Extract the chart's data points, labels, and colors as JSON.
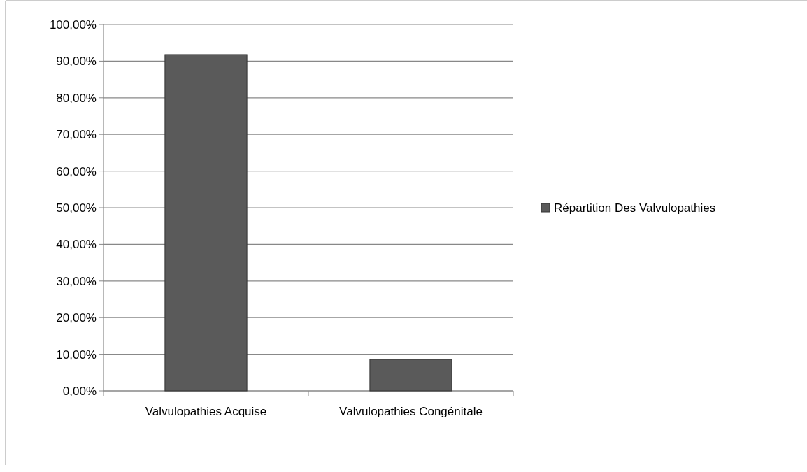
{
  "chart_data": {
    "type": "bar",
    "categories": [
      "Valvulopathies Acquise",
      "Valvulopathies Congénitale"
    ],
    "series": [
      {
        "name": "Répartition Des Valvulopathies",
        "color": "#5a5a5a",
        "values": [
          91.8,
          8.6
        ]
      }
    ],
    "ylim": [
      0,
      100
    ],
    "yticks": [
      {
        "value": 0,
        "label": "0,00%"
      },
      {
        "value": 10,
        "label": "10,00%"
      },
      {
        "value": 20,
        "label": "20,00%"
      },
      {
        "value": 30,
        "label": "30,00%"
      },
      {
        "value": 40,
        "label": "40,00%"
      },
      {
        "value": 50,
        "label": "50,00%"
      },
      {
        "value": 60,
        "label": "60,00%"
      },
      {
        "value": 70,
        "label": "70,00%"
      },
      {
        "value": 80,
        "label": "80,00%"
      },
      {
        "value": 90,
        "label": "90,00%"
      },
      {
        "value": 100,
        "label": "100,00%"
      }
    ],
    "grid": "y",
    "legend": "right"
  }
}
